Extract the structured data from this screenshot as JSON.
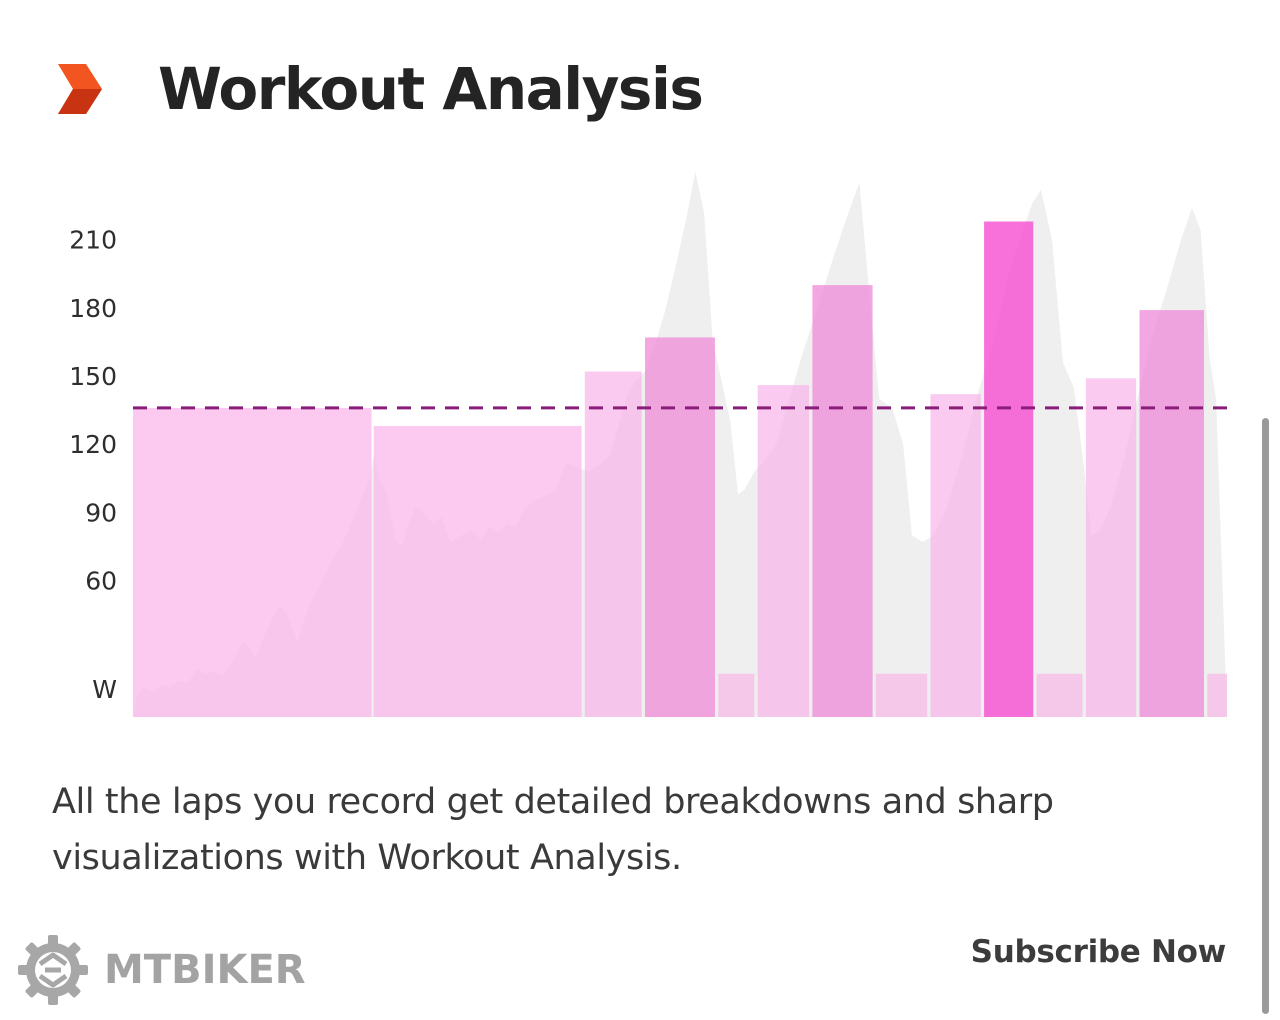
{
  "header": {
    "title": "Workout Analysis",
    "brand_icon": "orange-chevron-icon",
    "brand_colors": [
      "#f2551f",
      "#c83412"
    ]
  },
  "chart_data": {
    "type": "bar",
    "ylabel": "W",
    "yticks": [
      60,
      90,
      120,
      150,
      180,
      210
    ],
    "ylim": [
      0,
      238
    ],
    "average_line": 136,
    "laps": [
      {
        "start": 0,
        "end": 0.218,
        "value": 136
      },
      {
        "start": 0.22,
        "end": 0.41,
        "value": 128
      },
      {
        "start": 0.413,
        "end": 0.465,
        "value": 152
      },
      {
        "start": 0.468,
        "end": 0.532,
        "value": 167
      },
      {
        "start": 0.535,
        "end": 0.568,
        "value": 19
      },
      {
        "start": 0.571,
        "end": 0.618,
        "value": 146
      },
      {
        "start": 0.621,
        "end": 0.676,
        "value": 190
      },
      {
        "start": 0.679,
        "end": 0.726,
        "value": 19
      },
      {
        "start": 0.729,
        "end": 0.775,
        "value": 142
      },
      {
        "start": 0.778,
        "end": 0.823,
        "value": 218
      },
      {
        "start": 0.826,
        "end": 0.868,
        "value": 19
      },
      {
        "start": 0.871,
        "end": 0.917,
        "value": 149
      },
      {
        "start": 0.92,
        "end": 0.979,
        "value": 179
      },
      {
        "start": 0.982,
        "end": 1.0,
        "value": 19
      }
    ],
    "power_trace": [
      [
        0,
        0
      ],
      [
        0.004,
        10
      ],
      [
        0.01,
        13
      ],
      [
        0.018,
        11
      ],
      [
        0.026,
        14
      ],
      [
        0.034,
        13
      ],
      [
        0.042,
        16
      ],
      [
        0.05,
        15
      ],
      [
        0.058,
        21
      ],
      [
        0.066,
        19
      ],
      [
        0.074,
        20
      ],
      [
        0.082,
        18
      ],
      [
        0.09,
        24
      ],
      [
        0.1,
        33
      ],
      [
        0.106,
        31
      ],
      [
        0.112,
        26
      ],
      [
        0.12,
        36
      ],
      [
        0.128,
        44
      ],
      [
        0.134,
        49
      ],
      [
        0.14,
        46
      ],
      [
        0.146,
        39
      ],
      [
        0.15,
        33
      ],
      [
        0.156,
        42
      ],
      [
        0.162,
        50
      ],
      [
        0.17,
        57
      ],
      [
        0.18,
        67
      ],
      [
        0.192,
        77
      ],
      [
        0.202,
        88
      ],
      [
        0.21,
        98
      ],
      [
        0.216,
        104
      ],
      [
        0.22,
        115
      ],
      [
        0.225,
        105
      ],
      [
        0.232,
        98
      ],
      [
        0.24,
        78
      ],
      [
        0.246,
        75
      ],
      [
        0.252,
        85
      ],
      [
        0.258,
        93
      ],
      [
        0.266,
        90
      ],
      [
        0.274,
        85
      ],
      [
        0.282,
        88
      ],
      [
        0.29,
        77
      ],
      [
        0.3,
        80
      ],
      [
        0.31,
        82
      ],
      [
        0.318,
        78
      ],
      [
        0.326,
        84
      ],
      [
        0.334,
        81
      ],
      [
        0.342,
        85
      ],
      [
        0.35,
        84
      ],
      [
        0.358,
        92
      ],
      [
        0.366,
        95
      ],
      [
        0.376,
        97
      ],
      [
        0.386,
        100
      ],
      [
        0.396,
        112
      ],
      [
        0.406,
        110
      ],
      [
        0.416,
        108
      ],
      [
        0.426,
        111
      ],
      [
        0.436,
        115
      ],
      [
        0.444,
        128
      ],
      [
        0.452,
        142
      ],
      [
        0.46,
        148
      ],
      [
        0.468,
        152
      ],
      [
        0.476,
        162
      ],
      [
        0.486,
        178
      ],
      [
        0.496,
        198
      ],
      [
        0.506,
        220
      ],
      [
        0.514,
        240
      ],
      [
        0.522,
        222
      ],
      [
        0.53,
        165
      ],
      [
        0.538,
        148
      ],
      [
        0.546,
        130
      ],
      [
        0.553,
        98
      ],
      [
        0.559,
        100
      ],
      [
        0.568,
        108
      ],
      [
        0.576,
        112
      ],
      [
        0.588,
        120
      ],
      [
        0.6,
        140
      ],
      [
        0.612,
        160
      ],
      [
        0.626,
        180
      ],
      [
        0.64,
        202
      ],
      [
        0.654,
        222
      ],
      [
        0.664,
        235
      ],
      [
        0.672,
        192
      ],
      [
        0.682,
        140
      ],
      [
        0.694,
        136
      ],
      [
        0.704,
        120
      ],
      [
        0.712,
        80
      ],
      [
        0.722,
        77
      ],
      [
        0.732,
        80
      ],
      [
        0.744,
        92
      ],
      [
        0.758,
        115
      ],
      [
        0.772,
        142
      ],
      [
        0.788,
        168
      ],
      [
        0.802,
        198
      ],
      [
        0.814,
        215
      ],
      [
        0.822,
        226
      ],
      [
        0.83,
        232
      ],
      [
        0.84,
        210
      ],
      [
        0.85,
        156
      ],
      [
        0.86,
        145
      ],
      [
        0.868,
        115
      ],
      [
        0.876,
        80
      ],
      [
        0.884,
        82
      ],
      [
        0.894,
        93
      ],
      [
        0.906,
        114
      ],
      [
        0.918,
        140
      ],
      [
        0.932,
        168
      ],
      [
        0.946,
        190
      ],
      [
        0.958,
        210
      ],
      [
        0.968,
        224
      ],
      [
        0.976,
        214
      ],
      [
        0.984,
        158
      ],
      [
        0.99,
        140
      ],
      [
        1.0,
        0
      ]
    ],
    "colors": {
      "trace": "#efefef",
      "average_line": "#8a1d7a"
    }
  },
  "description": "All the laps you record get detailed breakdowns and sharp visualizations with Workout Analysis.",
  "footer": {
    "logo_text": "MTBIKER",
    "logo_icon": "gear-icon",
    "subscribe_label": "Subscribe Now"
  }
}
